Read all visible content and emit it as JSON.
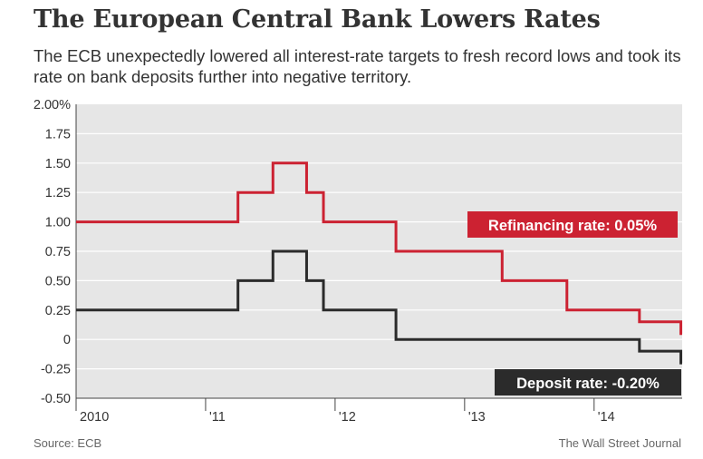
{
  "header": {
    "title": "The European Central Bank Lowers Rates",
    "subtitle": "The ECB unexpectedly lowered all interest-rate targets to fresh record lows and took its rate on bank deposits further into negative territory."
  },
  "footer": {
    "source": "Source: ECB",
    "credit": "The Wall Street Journal"
  },
  "colors": {
    "refi": "#cc2232",
    "deposit": "#2b2b2b",
    "plot_bg": "#e6e6e6",
    "grid": "#ffffff"
  },
  "chart_data": {
    "type": "line",
    "xlim": [
      2010.0,
      2014.68
    ],
    "ylim": [
      -0.5,
      2.0
    ],
    "x_ticks": [
      {
        "value": 2010,
        "label": "2010"
      },
      {
        "value": 2011,
        "label": "'11"
      },
      {
        "value": 2012,
        "label": "'12"
      },
      {
        "value": 2013,
        "label": "'13"
      },
      {
        "value": 2014,
        "label": "'14"
      }
    ],
    "y_ticks": [
      {
        "value": 2.0,
        "label": "2.00%"
      },
      {
        "value": 1.75,
        "label": "1.75"
      },
      {
        "value": 1.5,
        "label": "1.50"
      },
      {
        "value": 1.25,
        "label": "1.25"
      },
      {
        "value": 1.0,
        "label": "1.00"
      },
      {
        "value": 0.75,
        "label": "0.75"
      },
      {
        "value": 0.5,
        "label": "0.50"
      },
      {
        "value": 0.25,
        "label": "0.25"
      },
      {
        "value": 0.0,
        "label": "0"
      },
      {
        "value": -0.25,
        "label": "-0.25"
      },
      {
        "value": -0.5,
        "label": "-0.50"
      }
    ],
    "grid": true,
    "series": [
      {
        "name": "Refinancing rate",
        "label": "Refinancing rate: 0.05%",
        "label_position": "right, above line",
        "color": "#cc2232",
        "x": [
          2010.0,
          2011.25,
          2011.52,
          2011.78,
          2011.91,
          2012.47,
          2013.29,
          2013.79,
          2014.35,
          2014.67,
          2014.68
        ],
        "y": [
          1.0,
          1.25,
          1.5,
          1.25,
          1.0,
          0.75,
          0.5,
          0.25,
          0.15,
          0.05,
          0.05
        ]
      },
      {
        "name": "Deposit rate",
        "label": "Deposit rate: -0.20%",
        "label_position": "right, below line",
        "color": "#2b2b2b",
        "x": [
          2010.0,
          2011.25,
          2011.52,
          2011.78,
          2011.91,
          2012.47,
          2014.35,
          2014.67,
          2014.68
        ],
        "y": [
          0.25,
          0.5,
          0.75,
          0.5,
          0.25,
          0.0,
          -0.1,
          -0.2,
          -0.2
        ]
      }
    ]
  }
}
